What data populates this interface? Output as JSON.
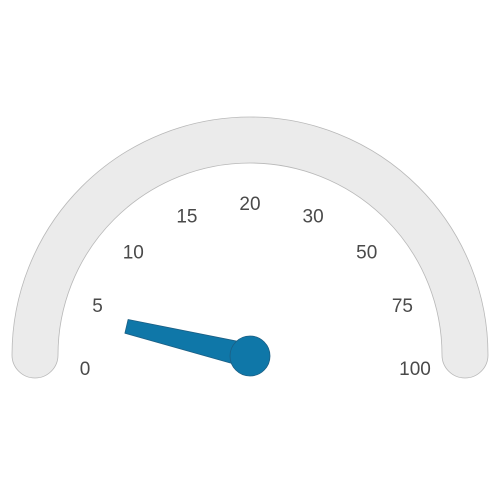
{
  "chart_data": {
    "type": "gauge",
    "title": "",
    "min": 0,
    "max": 100,
    "value": 3,
    "tick_labels": [
      "0",
      "5",
      "10",
      "15",
      "20",
      "30",
      "50",
      "75",
      "100"
    ],
    "colors": {
      "track": "#ebebeb",
      "track_outline": "#b8b8b8",
      "needle": "#0f77a8",
      "needle_outline": "#1c5f84",
      "label": "#4a4a4a"
    }
  }
}
